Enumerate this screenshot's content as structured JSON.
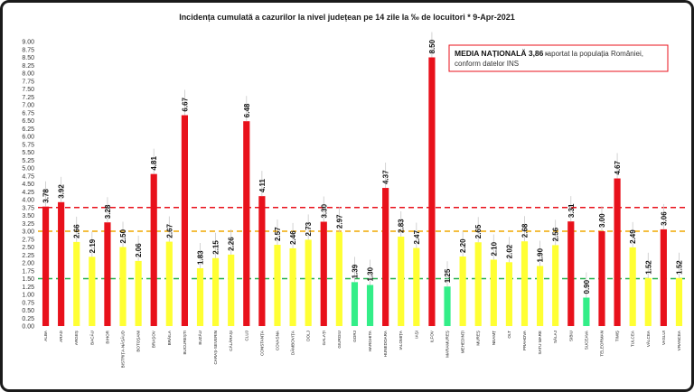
{
  "chart_data": {
    "type": "bar",
    "title": "Incidența cumulată a cazurilor la nivel județean pe 14 zile la ‰ de locuitori *  9-Apr-2021",
    "ylim": [
      0,
      9
    ],
    "ytick_labels": [
      "0.00",
      "0.25",
      "0.50",
      "0.75",
      "1.00",
      "1.25",
      "1.50",
      "1.75",
      "2.00",
      "2.25",
      "2.50",
      "2.75",
      "3.00",
      "3.25",
      "3.50",
      "3.75",
      "4.00",
      "4.25",
      "4.50",
      "4.75",
      "5.00",
      "5.25",
      "5.50",
      "5.75",
      "6.00",
      "6.25",
      "6.50",
      "6.75",
      "7.00",
      "7.25",
      "7.50",
      "7.75",
      "8.00",
      "8.25",
      "8.50",
      "8.75",
      "9.00"
    ],
    "categories": [
      "ALBA",
      "ARAD",
      "ARGEȘ",
      "BACĂU",
      "BIHOR",
      "BISTRIȚA-NĂSĂUD",
      "BOTOȘANI",
      "BRAȘOV",
      "BRĂILA",
      "BUCUREȘTI",
      "BUZĂU",
      "CARAȘ-SEVERIN",
      "CĂLĂRAȘI",
      "CLUJ",
      "CONSTANȚA",
      "COVASNA",
      "DÂMBOVIȚA",
      "DOLJ",
      "GALAȚI",
      "GIURGIU",
      "GORJ",
      "HARGHITA",
      "HUNEDOARA",
      "IALOMIȚA",
      "IAȘI",
      "ILFOV",
      "MARAMUREȘ",
      "MEHEDINȚI",
      "MUREȘ",
      "NEAMȚ",
      "OLT",
      "PRAHOVA",
      "SATU MARE",
      "SĂLAJ",
      "SIBIU",
      "SUCEAVA",
      "TELEORMAN",
      "TIMIȘ",
      "TULCEA",
      "VÂLCEA",
      "VASLUI",
      "VRANCEA"
    ],
    "values": [
      3.78,
      3.92,
      2.66,
      2.19,
      3.28,
      2.5,
      2.06,
      4.81,
      2.67,
      6.67,
      1.83,
      2.15,
      2.26,
      6.48,
      4.11,
      2.57,
      2.46,
      2.73,
      3.3,
      2.97,
      1.39,
      1.3,
      4.37,
      2.83,
      2.47,
      8.5,
      1.25,
      2.2,
      2.65,
      2.1,
      2.02,
      2.68,
      1.9,
      2.56,
      3.31,
      0.9,
      3.0,
      4.67,
      2.49,
      1.52,
      3.06,
      1.52
    ],
    "value_labels": [
      "3.78",
      "3.92",
      "2.66",
      "2.19",
      "3.28",
      "2.50",
      "2.06",
      "4.81",
      "2.67",
      "6.67",
      "1.83",
      "2.15",
      "2.26",
      "6.48",
      "4.11",
      "2.57",
      "2.46",
      "2.73",
      "3.30",
      "2.97",
      "1.39",
      "1.30",
      "4.37",
      "2.83",
      "2.47",
      "8.50",
      "1.25",
      "2.20",
      "2.65",
      "2.10",
      "2.02",
      "2.68",
      "1.90",
      "2.56",
      "3.31",
      "0.90",
      "3.00",
      "4.67",
      "2.49",
      "1.52",
      "3.06",
      "1.52"
    ],
    "bar_colors": [
      "#e8111b",
      "#e8111b",
      "#ffff33",
      "#ffff33",
      "#e8111b",
      "#ffff33",
      "#ffff33",
      "#e8111b",
      "#ffff33",
      "#e8111b",
      "#ffff33",
      "#ffff33",
      "#ffff33",
      "#e8111b",
      "#e8111b",
      "#ffff33",
      "#ffff33",
      "#ffff33",
      "#e8111b",
      "#ffff33",
      "#33ee88",
      "#33ee88",
      "#e8111b",
      "#ffff33",
      "#ffff33",
      "#e8111b",
      "#33ee88",
      "#ffff33",
      "#ffff33",
      "#ffff33",
      "#ffff33",
      "#ffff33",
      "#ffff33",
      "#ffff33",
      "#e8111b",
      "#33ee88",
      "#e8111b",
      "#e8111b",
      "#ffff33",
      "#ffff33",
      "#e8111b",
      "#ffff33"
    ],
    "threshold_lines": [
      {
        "value": 3.75,
        "color": "#e8111b"
      },
      {
        "value": 3.0,
        "color": "#f0a800"
      },
      {
        "value": 1.5,
        "color": "#22b04a"
      }
    ],
    "annotation": {
      "title": "MEDIA NAȚIONALĂ  3,86 -",
      "line1": "raportat la populația României,",
      "line2": "conform datelor INS",
      "border_color": "#e8111b"
    },
    "grid": false
  }
}
